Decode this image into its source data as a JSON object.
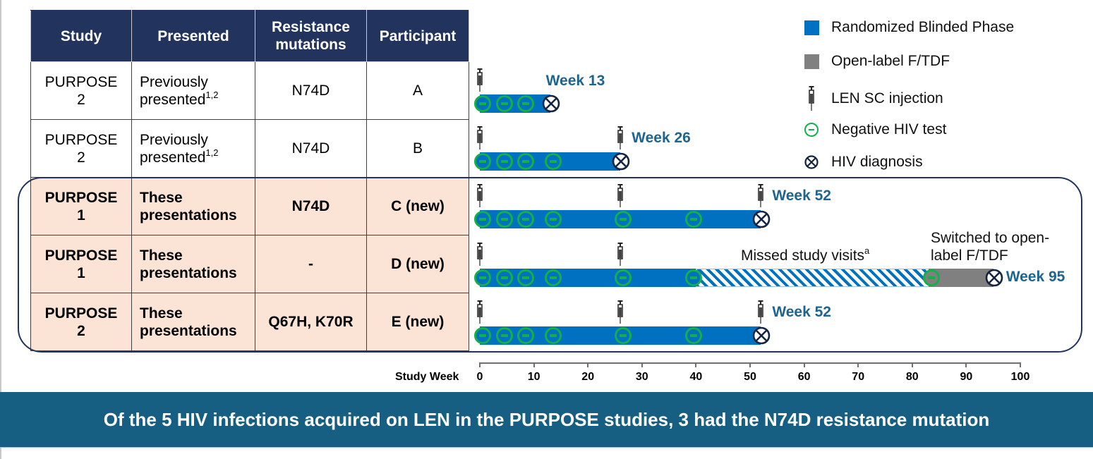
{
  "table": {
    "headers": [
      "Study",
      "Presented",
      "Resistance mutations",
      "Participant"
    ],
    "header_lines": {
      "study": "Study",
      "presented": "Presented",
      "resistance_line1": "Resistance",
      "resistance_line2": "mutations",
      "participant": "Participant"
    },
    "rows": [
      {
        "study_line1": "PURPOSE",
        "study_line2": "2",
        "presented_line1": "Previously",
        "presented_line2": "presented",
        "presented_sup": "1,2",
        "mutations": "N74D",
        "participant": "A",
        "is_new": false
      },
      {
        "study_line1": "PURPOSE",
        "study_line2": "2",
        "presented_line1": "Previously",
        "presented_line2": "presented",
        "presented_sup": "1,2",
        "mutations": "N74D",
        "participant": "B",
        "is_new": false
      },
      {
        "study_line1": "PURPOSE",
        "study_line2": "1",
        "presented_line1": "These",
        "presented_line2": "presentations",
        "presented_sup": "",
        "mutations": "N74D",
        "participant": "C (new)",
        "is_new": true
      },
      {
        "study_line1": "PURPOSE",
        "study_line2": "1",
        "presented_line1": "These",
        "presented_line2": "presentations",
        "presented_sup": "",
        "mutations": "-",
        "participant": "D (new)",
        "is_new": true
      },
      {
        "study_line1": "PURPOSE",
        "study_line2": "2",
        "presented_line1": "These",
        "presented_line2": "presentations",
        "presented_sup": "",
        "mutations": "Q67H, K70R",
        "participant": "E (new)",
        "is_new": true
      }
    ]
  },
  "legend": {
    "items": [
      {
        "label": "Randomized Blinded Phase",
        "icon": "blue-square-icon",
        "color": "#0070c0"
      },
      {
        "label": "Open-label F/TDF",
        "icon": "gray-square-icon",
        "color": "#808080"
      },
      {
        "label": "LEN SC injection",
        "icon": "syringe-icon"
      },
      {
        "label": "Negative HIV test",
        "icon": "negative-test-icon",
        "color": "#12b04a"
      },
      {
        "label": "HIV diagnosis",
        "icon": "hiv-diagnosis-icon",
        "color": "#14233f"
      }
    ]
  },
  "annotations": {
    "missed_visits": "Missed study visits",
    "missed_visits_sup": "a",
    "switched_line1": "Switched to open-",
    "switched_line2": "label F/TDF"
  },
  "axis": {
    "title": "Study Week",
    "ticks": [
      "0",
      "10",
      "20",
      "30",
      "40",
      "50",
      "60",
      "70",
      "80",
      "90",
      "100"
    ]
  },
  "banner": {
    "text": "Of the 5 HIV infections acquired on LEN in the PURPOSE studies, 3 had the N74D resistance mutation"
  },
  "colors": {
    "header_navy": "#22345e",
    "blinded_blue": "#0070c0",
    "open_label_gray": "#808080",
    "negative_green": "#12b04a",
    "week_label_teal": "#1e6491",
    "banner_teal": "#175f82",
    "new_row_peach": "#fbe3d6"
  },
  "chart_data": {
    "type": "timeline",
    "title": "",
    "xlabel": "Study Week",
    "xlim": [
      0,
      100
    ],
    "xticks": [
      0,
      10,
      20,
      30,
      40,
      50,
      60,
      70,
      80,
      90,
      100
    ],
    "participants": [
      {
        "id": "A",
        "diagnosis_label": "Week 13",
        "diagnosis_week": 13,
        "segments": [
          {
            "type": "Randomized Blinded Phase",
            "start": 0,
            "end": 13
          }
        ],
        "injections": [
          0
        ],
        "negative_tests": [
          0,
          4,
          8
        ]
      },
      {
        "id": "B",
        "diagnosis_label": "Week 26",
        "diagnosis_week": 26,
        "segments": [
          {
            "type": "Randomized Blinded Phase",
            "start": 0,
            "end": 26
          }
        ],
        "injections": [
          0,
          26
        ],
        "negative_tests": [
          0,
          4,
          8,
          13
        ]
      },
      {
        "id": "C (new)",
        "diagnosis_label": "Week 52",
        "diagnosis_week": 52,
        "segments": [
          {
            "type": "Randomized Blinded Phase",
            "start": 0,
            "end": 52
          }
        ],
        "injections": [
          0,
          26,
          52
        ],
        "negative_tests": [
          0,
          4,
          8,
          13,
          26,
          39
        ]
      },
      {
        "id": "D (new)",
        "diagnosis_label": "Week 95",
        "diagnosis_week": 95,
        "segments": [
          {
            "type": "Randomized Blinded Phase",
            "start": 0,
            "end": 40
          },
          {
            "type": "Missed study visits",
            "start": 40,
            "end": 83
          },
          {
            "type": "Open-label F/TDF",
            "start": 83,
            "end": 95
          }
        ],
        "injections": [
          0,
          26
        ],
        "negative_tests": [
          0,
          4,
          8,
          13,
          26,
          39,
          83
        ]
      },
      {
        "id": "E (new)",
        "diagnosis_label": "Week 52",
        "diagnosis_week": 52,
        "segments": [
          {
            "type": "Randomized Blinded Phase",
            "start": 0,
            "end": 52
          }
        ],
        "injections": [
          0,
          26,
          52
        ],
        "negative_tests": [
          0,
          4,
          8,
          13,
          26,
          39
        ]
      }
    ],
    "legend": [
      "Randomized Blinded Phase",
      "Open-label F/TDF",
      "LEN SC injection",
      "Negative HIV test",
      "HIV diagnosis"
    ],
    "legend_position": "top-right"
  }
}
